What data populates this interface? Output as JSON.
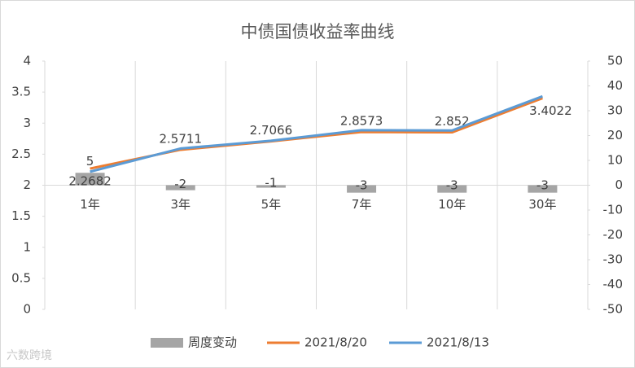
{
  "chart_data": {
    "type": "bar-line",
    "title": "中债国债收益率曲线",
    "watermark": "六数跨境",
    "categories": [
      "1年",
      "3年",
      "5年",
      "7年",
      "10年",
      "30年"
    ],
    "series": [
      {
        "name": "周度变动",
        "type": "bar",
        "axis": "y2",
        "color": "#a5a5a5",
        "values": [
          5,
          -2,
          -1,
          -3,
          -3,
          -3
        ],
        "show_labels": true
      },
      {
        "name": "2021/8/20",
        "type": "line",
        "color": "#ed7d31",
        "values": [
          2.2682,
          2.5711,
          2.7066,
          2.8573,
          2.852,
          3.4022
        ],
        "show_labels": true
      },
      {
        "name": "2021/8/13",
        "type": "line",
        "color": "#5b9bd5",
        "values": [
          2.2182,
          2.5911,
          2.7166,
          2.8873,
          2.882,
          3.4322
        ],
        "show_labels": false
      }
    ],
    "ylim": [
      0,
      4
    ],
    "yticks": [
      0,
      0.5,
      1,
      1.5,
      2,
      2.5,
      3,
      3.5,
      4
    ],
    "y2lim": [
      -50,
      50
    ],
    "y2ticks": [
      -50,
      -40,
      -30,
      -20,
      -10,
      0,
      10,
      20,
      30,
      40,
      50
    ],
    "legend": "bottom"
  }
}
